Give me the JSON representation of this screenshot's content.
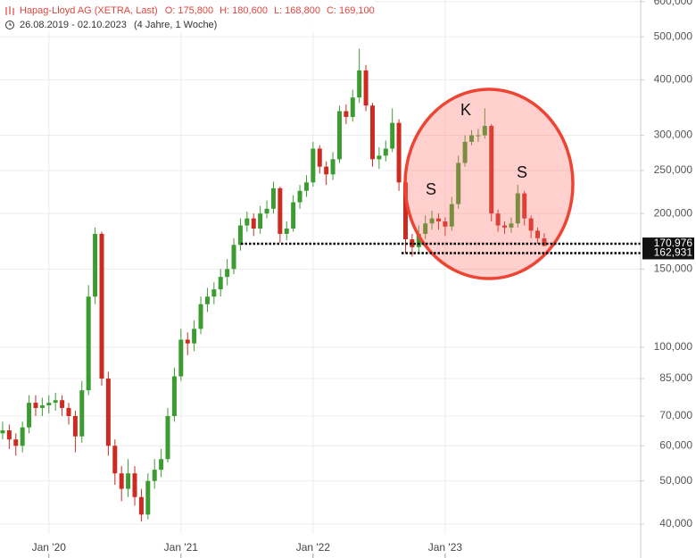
{
  "chart_data": {
    "type": "candlestick",
    "title": "Hapag-Lloyd AG (XETRA, Last)",
    "ohlc_labels": [
      "O: 175,800",
      "H: 180,600",
      "L: 168,800",
      "C: 169,100"
    ],
    "period": "26.08.2019 - 02.10.2023",
    "period_length": "(4 Jahre, 1 Woche)",
    "log_scale": true,
    "grid": true,
    "up_color": "#3c9c32",
    "down_color": "#cc2b22",
    "xlim": [
      2019.63,
      2024.48
    ],
    "xticks": [
      {
        "value": 2020,
        "label": "Jan '20"
      },
      {
        "value": 2021,
        "label": "Jan '21"
      },
      {
        "value": 2022,
        "label": "Jan '22"
      },
      {
        "value": 2023,
        "label": "Jan '23"
      }
    ],
    "ylim": [
      38000,
      605000
    ],
    "yticks": [
      {
        "value": 40000,
        "label": "40,000"
      },
      {
        "value": 50000,
        "label": "50,000"
      },
      {
        "value": 60000,
        "label": "60,000"
      },
      {
        "value": 70000,
        "label": "70,000"
      },
      {
        "value": 85000,
        "label": "85,000"
      },
      {
        "value": 100000,
        "label": "100,000"
      },
      {
        "value": 150000,
        "label": "150,000"
      },
      {
        "value": 200000,
        "label": "200,000"
      },
      {
        "value": 250000,
        "label": "250,000"
      },
      {
        "value": 300000,
        "label": "300,000"
      },
      {
        "value": 400000,
        "label": "400,000"
      },
      {
        "value": 500000,
        "label": "500,000"
      },
      {
        "value": 600000,
        "label": "600,000"
      }
    ],
    "reference_lines": [
      {
        "value": 170976,
        "label": "170,976"
      },
      {
        "value": 162931,
        "label": "162,931"
      }
    ],
    "annotations": [
      "S",
      "K",
      "S"
    ],
    "x": [
      2019.65,
      2019.7,
      2019.75,
      2019.8,
      2019.85,
      2019.9,
      2019.95,
      2020.0,
      2020.05,
      2020.1,
      2020.15,
      2020.2,
      2020.25,
      2020.3,
      2020.35,
      2020.4,
      2020.45,
      2020.5,
      2020.55,
      2020.6,
      2020.65,
      2020.7,
      2020.75,
      2020.8,
      2020.85,
      2020.9,
      2020.95,
      2021.0,
      2021.05,
      2021.1,
      2021.15,
      2021.2,
      2021.25,
      2021.3,
      2021.35,
      2021.4,
      2021.45,
      2021.5,
      2021.55,
      2021.6,
      2021.65,
      2021.7,
      2021.75,
      2021.8,
      2021.85,
      2021.9,
      2021.95,
      2022.0,
      2022.05,
      2022.1,
      2022.15,
      2022.2,
      2022.25,
      2022.3,
      2022.35,
      2022.4,
      2022.45,
      2022.5,
      2022.55,
      2022.6,
      2022.65,
      2022.7,
      2022.75,
      2022.8,
      2022.85,
      2022.9,
      2022.95,
      2023.0,
      2023.05,
      2023.1,
      2023.15,
      2023.2,
      2023.25,
      2023.3,
      2023.35,
      2023.4,
      2023.45,
      2023.5,
      2023.55,
      2023.6,
      2023.65,
      2023.7,
      2023.75
    ],
    "open": [
      64000,
      65000,
      62000,
      60000,
      66000,
      75000,
      73000,
      74000,
      75000,
      76000,
      73000,
      70000,
      63000,
      80000,
      130000,
      180000,
      85000,
      60000,
      52000,
      48000,
      52000,
      46000,
      42000,
      50000,
      53000,
      56000,
      70000,
      86000,
      104000,
      102000,
      110000,
      125000,
      130000,
      135000,
      144000,
      150000,
      170000,
      188000,
      195000,
      185000,
      200000,
      205000,
      228000,
      180000,
      185000,
      212000,
      225000,
      235000,
      280000,
      255000,
      245000,
      265000,
      340000,
      330000,
      365000,
      420000,
      350000,
      265000,
      270000,
      280000,
      320000,
      235000,
      175000,
      168000,
      180000,
      190000,
      195000,
      192000,
      187000,
      210000,
      260000,
      290000,
      300000,
      300000,
      315000,
      200000,
      188000,
      186000,
      190000,
      222000,
      195000,
      183000,
      175800
    ],
    "high": [
      68000,
      67000,
      64000,
      68000,
      78000,
      78000,
      77000,
      78000,
      79000,
      78000,
      75000,
      72000,
      84000,
      138000,
      186000,
      182000,
      88000,
      62000,
      54000,
      56000,
      54000,
      48000,
      52000,
      56000,
      59000,
      73000,
      90000,
      110000,
      108000,
      115000,
      130000,
      136000,
      140000,
      150000,
      158000,
      176000,
      195000,
      202000,
      200000,
      208000,
      214000,
      236000,
      230000,
      192000,
      220000,
      232000,
      244000,
      290000,
      285000,
      262000,
      275000,
      350000,
      352000,
      380000,
      470000,
      432000,
      355000,
      282000,
      292000,
      345000,
      326000,
      240000,
      180000,
      188000,
      198000,
      203000,
      200000,
      196000,
      218000,
      270000,
      300000,
      308000,
      310000,
      345000,
      318000,
      204000,
      192000,
      196000,
      232000,
      225000,
      198000,
      186000,
      180600
    ],
    "low": [
      62000,
      59000,
      57000,
      58000,
      64000,
      70000,
      70000,
      71000,
      72000,
      70000,
      67000,
      58000,
      61000,
      78000,
      125000,
      82000,
      57000,
      49000,
      45000,
      46000,
      44000,
      40500,
      41000,
      48000,
      51000,
      55000,
      68000,
      84000,
      96000,
      98000,
      107000,
      120000,
      125000,
      130000,
      138000,
      146000,
      165000,
      182000,
      178000,
      180000,
      195000,
      200000,
      172000,
      174000,
      182000,
      205000,
      218000,
      230000,
      246000,
      232000,
      238000,
      260000,
      318000,
      322000,
      355000,
      340000,
      255000,
      252000,
      262000,
      275000,
      225000,
      163000,
      160000,
      163000,
      175000,
      184000,
      184000,
      178000,
      183000,
      205000,
      255000,
      285000,
      290000,
      295000,
      192000,
      182000,
      180000,
      181000,
      186000,
      188000,
      176000,
      171000,
      168800
    ],
    "close": [
      65000,
      62000,
      60000,
      66000,
      75000,
      73000,
      74000,
      75000,
      76000,
      73000,
      70000,
      63000,
      80000,
      130000,
      180000,
      85000,
      60000,
      52000,
      48000,
      52000,
      46000,
      42000,
      50000,
      53000,
      56000,
      70000,
      86000,
      104000,
      102000,
      110000,
      125000,
      130000,
      135000,
      144000,
      150000,
      170000,
      188000,
      195000,
      185000,
      200000,
      205000,
      228000,
      180000,
      185000,
      212000,
      225000,
      235000,
      280000,
      255000,
      245000,
      265000,
      340000,
      330000,
      365000,
      420000,
      350000,
      265000,
      270000,
      280000,
      320000,
      235000,
      175000,
      168000,
      180000,
      190000,
      195000,
      192000,
      187000,
      210000,
      260000,
      290000,
      300000,
      300000,
      315000,
      200000,
      188000,
      186000,
      190000,
      222000,
      195000,
      183000,
      176000,
      169100
    ]
  }
}
